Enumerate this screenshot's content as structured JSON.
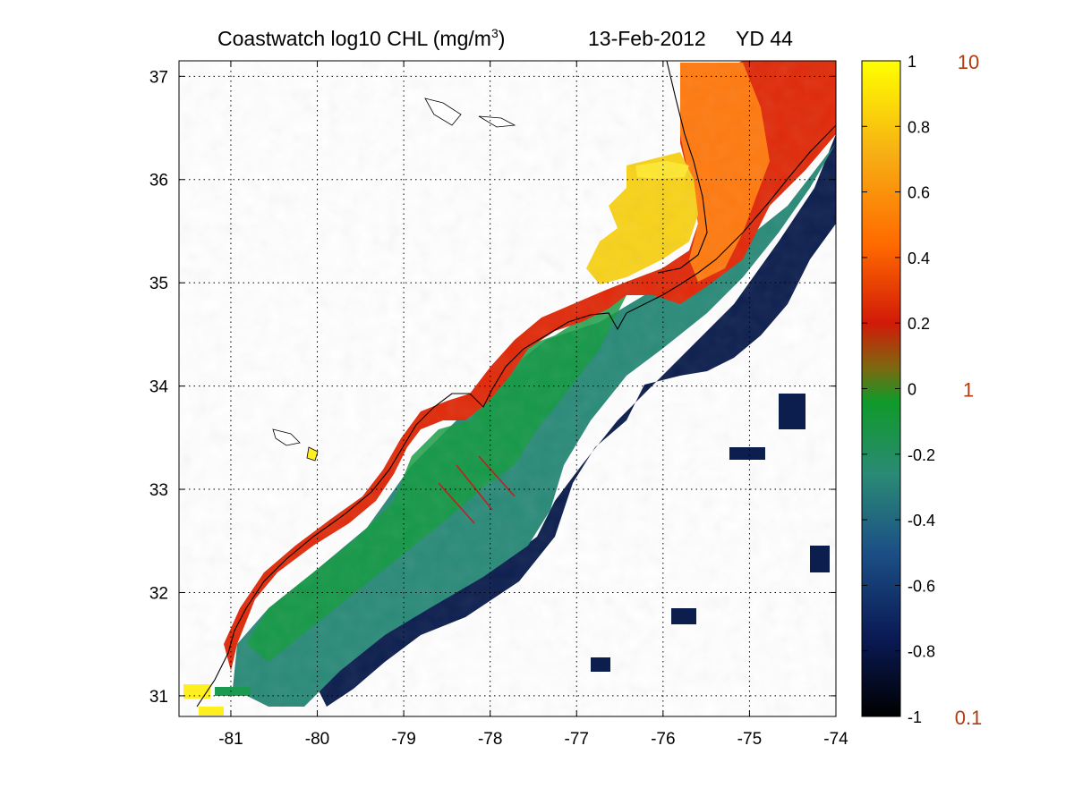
{
  "title": {
    "main": "Coastwatch  log10  CHL (mg/m",
    "sup": "3",
    "close": ")",
    "date": "13-Feb-2012",
    "yd": "YD 44"
  },
  "map": {
    "lon_range": [
      -81.6,
      -74.0
    ],
    "lat_range": [
      30.8,
      37.15
    ],
    "x_ticks": [
      "-81",
      "-80",
      "-79",
      "-78",
      "-77",
      "-76",
      "-75",
      "-74"
    ],
    "y_ticks": [
      "31",
      "32",
      "33",
      "34",
      "35",
      "36",
      "37"
    ],
    "grid": "dotted"
  },
  "colorbar": {
    "log_ticks": [
      "1",
      "0.8",
      "0.6",
      "0.4",
      "0.2",
      "0",
      "-0.2",
      "-0.4",
      "-0.6",
      "-0.8",
      "-1"
    ],
    "linear_labels": [
      "10",
      "1",
      "0.1"
    ],
    "linear_label_color": "#b23a10",
    "stops": [
      "#000000",
      "#0a1a55",
      "#1c4f86",
      "#2a8a75",
      "#0f9a2a",
      "#7a6a10",
      "#d21a08",
      "#ff6a00",
      "#f7b014",
      "#ffff00"
    ]
  }
}
